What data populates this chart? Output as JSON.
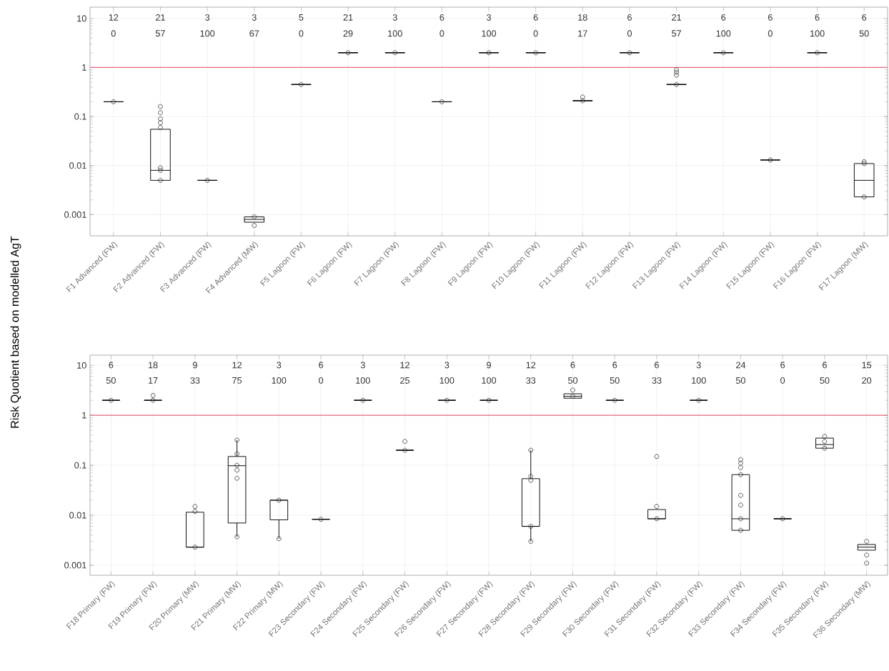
{
  "chart_data": [
    {
      "type": "box",
      "ylabel": "Risk Quotient based on modelled AgT",
      "log": "y",
      "grid": true,
      "ylim": [
        0.00037,
        17
      ],
      "yticks": [
        0.001,
        0.01,
        0.1,
        1,
        10
      ],
      "categories": [
        "F1 Advanced (FW)",
        "F2 Advanced (FW)",
        "F3 Advanced (FW)",
        "F4 Advanced (MW)",
        "F5 Lagoon (FW)",
        "F6 Lagoon (FW)",
        "F7 Lagoon (FW)",
        "F8 Lagoon (FW)",
        "F9 Lagoon (FW)",
        "F10 Lagoon (FW)",
        "F11 Lagoon (FW)",
        "F12 Lagoon (FW)",
        "F13 Lagoon (FW)",
        "F14 Lagoon (FW)",
        "F15 Lagoon (FW)",
        "F16 Lagoon (FW)",
        "F17 Lagoon (MW)"
      ],
      "boxes": [
        {
          "low": 0.2,
          "q1": 0.2,
          "median": 0.2,
          "q3": 0.2,
          "high": 0.2,
          "outliers": [
            0.2
          ]
        },
        {
          "low": 0.005,
          "q1": 0.005,
          "median": 0.008,
          "q3": 0.055,
          "high": 0.055,
          "outliers": [
            0.16,
            0.12,
            0.09,
            0.075,
            0.06,
            0.009,
            0.008,
            0.005
          ]
        },
        {
          "low": 0.005,
          "q1": 0.005,
          "median": 0.005,
          "q3": 0.005,
          "high": 0.005,
          "outliers": [
            0.005
          ]
        },
        {
          "low": 0.0007,
          "q1": 0.0007,
          "median": 0.0008,
          "q3": 0.0009,
          "high": 0.0009,
          "outliers": [
            0.0009,
            0.0006
          ]
        },
        {
          "low": 0.45,
          "q1": 0.45,
          "median": 0.45,
          "q3": 0.45,
          "high": 0.45,
          "outliers": [
            0.45
          ]
        },
        {
          "low": 2,
          "q1": 2,
          "median": 2,
          "q3": 2,
          "high": 2,
          "outliers": [
            2
          ]
        },
        {
          "low": 2,
          "q1": 2,
          "median": 2,
          "q3": 2,
          "high": 2,
          "outliers": [
            2
          ]
        },
        {
          "low": 0.2,
          "q1": 0.2,
          "median": 0.2,
          "q3": 0.2,
          "high": 0.2,
          "outliers": [
            0.2
          ]
        },
        {
          "low": 2,
          "q1": 2,
          "median": 2,
          "q3": 2,
          "high": 2,
          "outliers": [
            2
          ]
        },
        {
          "low": 2,
          "q1": 2,
          "median": 2,
          "q3": 2,
          "high": 2,
          "outliers": [
            2
          ]
        },
        {
          "low": 0.21,
          "q1": 0.21,
          "median": 0.21,
          "q3": 0.21,
          "high": 0.21,
          "outliers": [
            0.25,
            0.21
          ]
        },
        {
          "low": 2,
          "q1": 2,
          "median": 2,
          "q3": 2,
          "high": 2,
          "outliers": [
            2
          ]
        },
        {
          "low": 0.45,
          "q1": 0.45,
          "median": 0.45,
          "q3": 0.45,
          "high": 0.45,
          "outliers": [
            0.9,
            0.8,
            0.7,
            0.45
          ]
        },
        {
          "low": 2,
          "q1": 2,
          "median": 2,
          "q3": 2,
          "high": 2,
          "outliers": [
            2
          ]
        },
        {
          "low": 0.013,
          "q1": 0.013,
          "median": 0.013,
          "q3": 0.013,
          "high": 0.013,
          "outliers": [
            0.013
          ]
        },
        {
          "low": 2,
          "q1": 2,
          "median": 2,
          "q3": 2,
          "high": 2,
          "outliers": [
            2
          ]
        },
        {
          "low": 0.0023,
          "q1": 0.0023,
          "median": 0.005,
          "q3": 0.011,
          "high": 0.011,
          "outliers": [
            0.012,
            0.011,
            0.0023
          ]
        }
      ],
      "ref_lines": [
        {
          "axis": "y",
          "value": 1,
          "color": "#e86a7a"
        }
      ],
      "annotations": [
        "12",
        "0",
        "21",
        "57",
        "3",
        "100",
        "3",
        "67",
        "5",
        "0",
        "21",
        "29",
        "3",
        "100",
        "6",
        "0",
        "3",
        "100",
        "6",
        "0",
        "18",
        "17",
        "6",
        "0",
        "21",
        "57",
        "6",
        "100",
        "6",
        "0",
        "6",
        "100",
        "6",
        "50"
      ]
    },
    {
      "type": "box",
      "log": "y",
      "grid": true,
      "ylim": [
        0.00063,
        16
      ],
      "yticks": [
        0.001,
        0.01,
        0.1,
        1,
        10
      ],
      "categories": [
        "F18 Primary (FW)",
        "F19 Primary (FW)",
        "F20 Primary (MW)",
        "F21 Primary (MW)",
        "F22 Primary (MW)",
        "F23 Secondary (FW)",
        "F24 Secondary (FW)",
        "F25 Secondary (FW)",
        "F26 Secondary (FW)",
        "F27 Secondary (FW)",
        "F28 Secondary (FW)",
        "F29 Secondary (FW)",
        "F30 Secondary (FW)",
        "F31 Secondary (FW)",
        "F32 Secondary (FW)",
        "F33 Secondary (FW)",
        "F34 Secondary (FW)",
        "F35 Secondary (FW)",
        "F36 Secondary (MW)"
      ],
      "boxes": [
        {
          "low": 2,
          "q1": 2,
          "median": 2,
          "q3": 2,
          "high": 2,
          "outliers": [
            2
          ]
        },
        {
          "low": 2,
          "q1": 2,
          "median": 2,
          "q3": 2,
          "high": 2,
          "outliers": [
            2.5,
            2
          ]
        },
        {
          "low": 0.0023,
          "q1": 0.0023,
          "median": 0.0023,
          "q3": 0.0115,
          "high": 0.0115,
          "outliers": [
            0.015,
            0.012,
            0.0023
          ]
        },
        {
          "low": 0.0037,
          "q1": 0.007,
          "median": 0.098,
          "q3": 0.15,
          "high": 0.32,
          "outliers": [
            0.32,
            0.17,
            0.1,
            0.08,
            0.055,
            0.0037
          ]
        },
        {
          "low": 0.0034,
          "q1": 0.0081,
          "median": 0.02,
          "q3": 0.02,
          "high": 0.02,
          "outliers": [
            0.02,
            0.0034
          ]
        },
        {
          "low": 0.0083,
          "q1": 0.0083,
          "median": 0.0083,
          "q3": 0.0083,
          "high": 0.0083,
          "outliers": [
            0.0083
          ]
        },
        {
          "low": 2,
          "q1": 2,
          "median": 2,
          "q3": 2,
          "high": 2,
          "outliers": [
            2
          ]
        },
        {
          "low": 0.2,
          "q1": 0.2,
          "median": 0.2,
          "q3": 0.2,
          "high": 0.2,
          "outliers": [
            0.3,
            0.2
          ]
        },
        {
          "low": 2,
          "q1": 2,
          "median": 2,
          "q3": 2,
          "high": 2,
          "outliers": [
            2
          ]
        },
        {
          "low": 2,
          "q1": 2,
          "median": 2,
          "q3": 2,
          "high": 2,
          "outliers": [
            2
          ]
        },
        {
          "low": 0.003,
          "q1": 0.006,
          "median": 0.006,
          "q3": 0.054,
          "high": 0.2,
          "outliers": [
            0.2,
            0.06,
            0.05,
            0.006,
            0.003
          ]
        },
        {
          "low": 2.2,
          "q1": 2.2,
          "median": 2.4,
          "q3": 2.7,
          "high": 2.7,
          "outliers": [
            3.2,
            2.4
          ]
        },
        {
          "low": 2,
          "q1": 2,
          "median": 2,
          "q3": 2,
          "high": 2,
          "outliers": [
            2
          ]
        },
        {
          "low": 0.0085,
          "q1": 0.0085,
          "median": 0.0085,
          "q3": 0.013,
          "high": 0.013,
          "outliers": [
            0.15,
            0.015,
            0.0085
          ]
        },
        {
          "low": 2,
          "q1": 2,
          "median": 2,
          "q3": 2,
          "high": 2,
          "outliers": [
            2
          ]
        },
        {
          "low": 0.005,
          "q1": 0.005,
          "median": 0.0085,
          "q3": 0.065,
          "high": 0.065,
          "outliers": [
            0.13,
            0.11,
            0.09,
            0.065,
            0.025,
            0.016,
            0.0085,
            0.005
          ]
        },
        {
          "low": 0.0085,
          "q1": 0.0085,
          "median": 0.0085,
          "q3": 0.0085,
          "high": 0.0085,
          "outliers": [
            0.0085
          ]
        },
        {
          "low": 0.22,
          "q1": 0.22,
          "median": 0.26,
          "q3": 0.35,
          "high": 0.35,
          "outliers": [
            0.38,
            0.3,
            0.22
          ]
        },
        {
          "low": 0.002,
          "q1": 0.002,
          "median": 0.0023,
          "q3": 0.0026,
          "high": 0.0026,
          "outliers": [
            0.003,
            0.0016,
            0.0011
          ]
        }
      ],
      "ref_lines": [
        {
          "axis": "y",
          "value": 1,
          "color": "#e86a7a"
        }
      ],
      "annotations": [
        "6",
        "50",
        "18",
        "17",
        "9",
        "33",
        "12",
        "75",
        "3",
        "100",
        "6",
        "0",
        "3",
        "100",
        "12",
        "25",
        "3",
        "100",
        "9",
        "100",
        "12",
        "33",
        "6",
        "50",
        "6",
        "50",
        "6",
        "33",
        "3",
        "100",
        "24",
        "50",
        "6",
        "0",
        "6",
        "50",
        "15",
        "20"
      ]
    }
  ]
}
